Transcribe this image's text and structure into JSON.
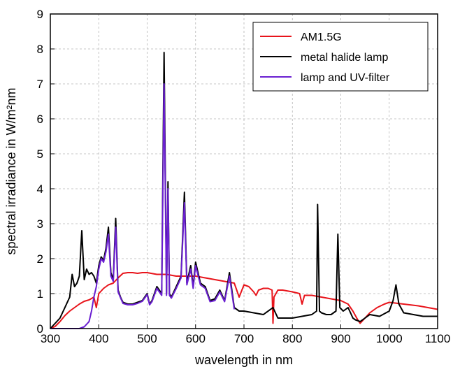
{
  "chart_data": {
    "type": "line",
    "title": "",
    "xlabel": "wavelength in nm",
    "ylabel": "spectral irradiance in W/m²nm",
    "xlim": [
      300,
      1100
    ],
    "ylim": [
      0,
      9
    ],
    "xticks": [
      300,
      400,
      500,
      600,
      700,
      800,
      900,
      1000,
      1100
    ],
    "yticks": [
      0,
      1,
      2,
      3,
      4,
      5,
      6,
      7,
      8,
      9
    ],
    "grid": true,
    "legend_position": "top-right",
    "series": [
      {
        "name": "AM1.5G",
        "color": "#e8141b",
        "x": [
          300,
          310,
          320,
          330,
          340,
          350,
          360,
          370,
          380,
          390,
          395,
          400,
          410,
          420,
          430,
          440,
          450,
          460,
          470,
          480,
          490,
          500,
          520,
          540,
          560,
          580,
          600,
          620,
          640,
          660,
          680,
          690,
          700,
          710,
          720,
          725,
          730,
          740,
          750,
          758,
          760,
          762,
          770,
          780,
          800,
          815,
          820,
          825,
          840,
          860,
          880,
          900,
          915,
          925,
          935,
          940,
          950,
          960,
          975,
          990,
          1000,
          1030,
          1060,
          1100
        ],
        "y": [
          0,
          0.06,
          0.2,
          0.37,
          0.5,
          0.6,
          0.7,
          0.78,
          0.82,
          0.9,
          0.6,
          1.0,
          1.15,
          1.25,
          1.3,
          1.45,
          1.58,
          1.6,
          1.6,
          1.58,
          1.6,
          1.6,
          1.55,
          1.55,
          1.5,
          1.5,
          1.5,
          1.45,
          1.4,
          1.35,
          1.3,
          0.9,
          1.25,
          1.2,
          1.05,
          0.95,
          1.1,
          1.15,
          1.15,
          1.1,
          0.15,
          0.9,
          1.1,
          1.1,
          1.05,
          1.0,
          0.7,
          0.95,
          0.95,
          0.9,
          0.85,
          0.8,
          0.7,
          0.5,
          0.25,
          0.15,
          0.3,
          0.45,
          0.6,
          0.7,
          0.75,
          0.7,
          0.65,
          0.55
        ]
      },
      {
        "name": "metal halide lamp",
        "color": "#000000",
        "x": [
          300,
          320,
          330,
          340,
          345,
          350,
          355,
          360,
          365,
          370,
          375,
          380,
          385,
          390,
          395,
          400,
          405,
          410,
          415,
          420,
          425,
          430,
          435,
          440,
          445,
          450,
          460,
          470,
          480,
          490,
          500,
          505,
          510,
          520,
          530,
          535,
          540,
          543,
          546,
          550,
          560,
          570,
          577,
          582,
          590,
          595,
          600,
          610,
          620,
          630,
          640,
          650,
          660,
          670,
          680,
          690,
          700,
          720,
          740,
          760,
          770,
          780,
          790,
          800,
          820,
          840,
          850,
          852,
          856,
          860,
          870,
          880,
          890,
          894,
          898,
          905,
          915,
          920,
          925,
          930,
          940,
          950,
          960,
          980,
          1000,
          1008,
          1014,
          1020,
          1030,
          1050,
          1070,
          1100
        ],
        "y": [
          0,
          0.3,
          0.6,
          0.9,
          1.55,
          1.2,
          1.3,
          1.5,
          2.8,
          1.4,
          1.7,
          1.55,
          1.6,
          1.5,
          1.3,
          1.8,
          2.05,
          1.95,
          2.3,
          2.9,
          1.6,
          1.4,
          3.15,
          1.1,
          0.9,
          0.75,
          0.7,
          0.7,
          0.75,
          0.8,
          1.0,
          0.7,
          0.8,
          1.2,
          1.0,
          7.9,
          1.0,
          4.2,
          1.0,
          0.9,
          1.2,
          1.5,
          3.9,
          1.3,
          1.8,
          1.2,
          1.9,
          1.3,
          1.2,
          0.8,
          0.85,
          1.1,
          0.8,
          1.6,
          0.6,
          0.5,
          0.5,
          0.45,
          0.4,
          0.6,
          0.3,
          0.3,
          0.3,
          0.3,
          0.35,
          0.4,
          0.5,
          3.55,
          0.5,
          0.45,
          0.4,
          0.4,
          0.5,
          2.7,
          0.6,
          0.5,
          0.6,
          0.45,
          0.3,
          0.25,
          0.2,
          0.3,
          0.4,
          0.35,
          0.5,
          0.8,
          1.25,
          0.7,
          0.45,
          0.4,
          0.35,
          0.35
        ]
      },
      {
        "name": "lamp and UV-filter",
        "color": "#6a1fd1",
        "x": [
          300,
          360,
          370,
          380,
          385,
          390,
          395,
          400,
          405,
          410,
          415,
          420,
          425,
          430,
          435,
          440,
          445,
          450,
          460,
          470,
          480,
          490,
          500,
          505,
          510,
          520,
          530,
          535,
          540,
          543,
          546,
          550,
          560,
          570,
          577,
          582,
          590,
          595,
          600,
          610,
          620,
          630,
          640,
          650,
          660,
          670,
          680
        ],
        "y": [
          0,
          0,
          0.05,
          0.2,
          0.5,
          0.9,
          1.2,
          1.7,
          2.0,
          1.9,
          2.2,
          2.7,
          1.5,
          1.35,
          2.9,
          1.05,
          0.88,
          0.72,
          0.68,
          0.68,
          0.72,
          0.78,
          0.97,
          0.68,
          0.77,
          1.15,
          0.95,
          7.0,
          0.95,
          4.0,
          0.95,
          0.87,
          1.15,
          1.45,
          3.6,
          1.25,
          1.7,
          1.15,
          1.8,
          1.25,
          1.15,
          0.77,
          0.8,
          1.05,
          0.77,
          1.5,
          0.55
        ]
      }
    ]
  }
}
